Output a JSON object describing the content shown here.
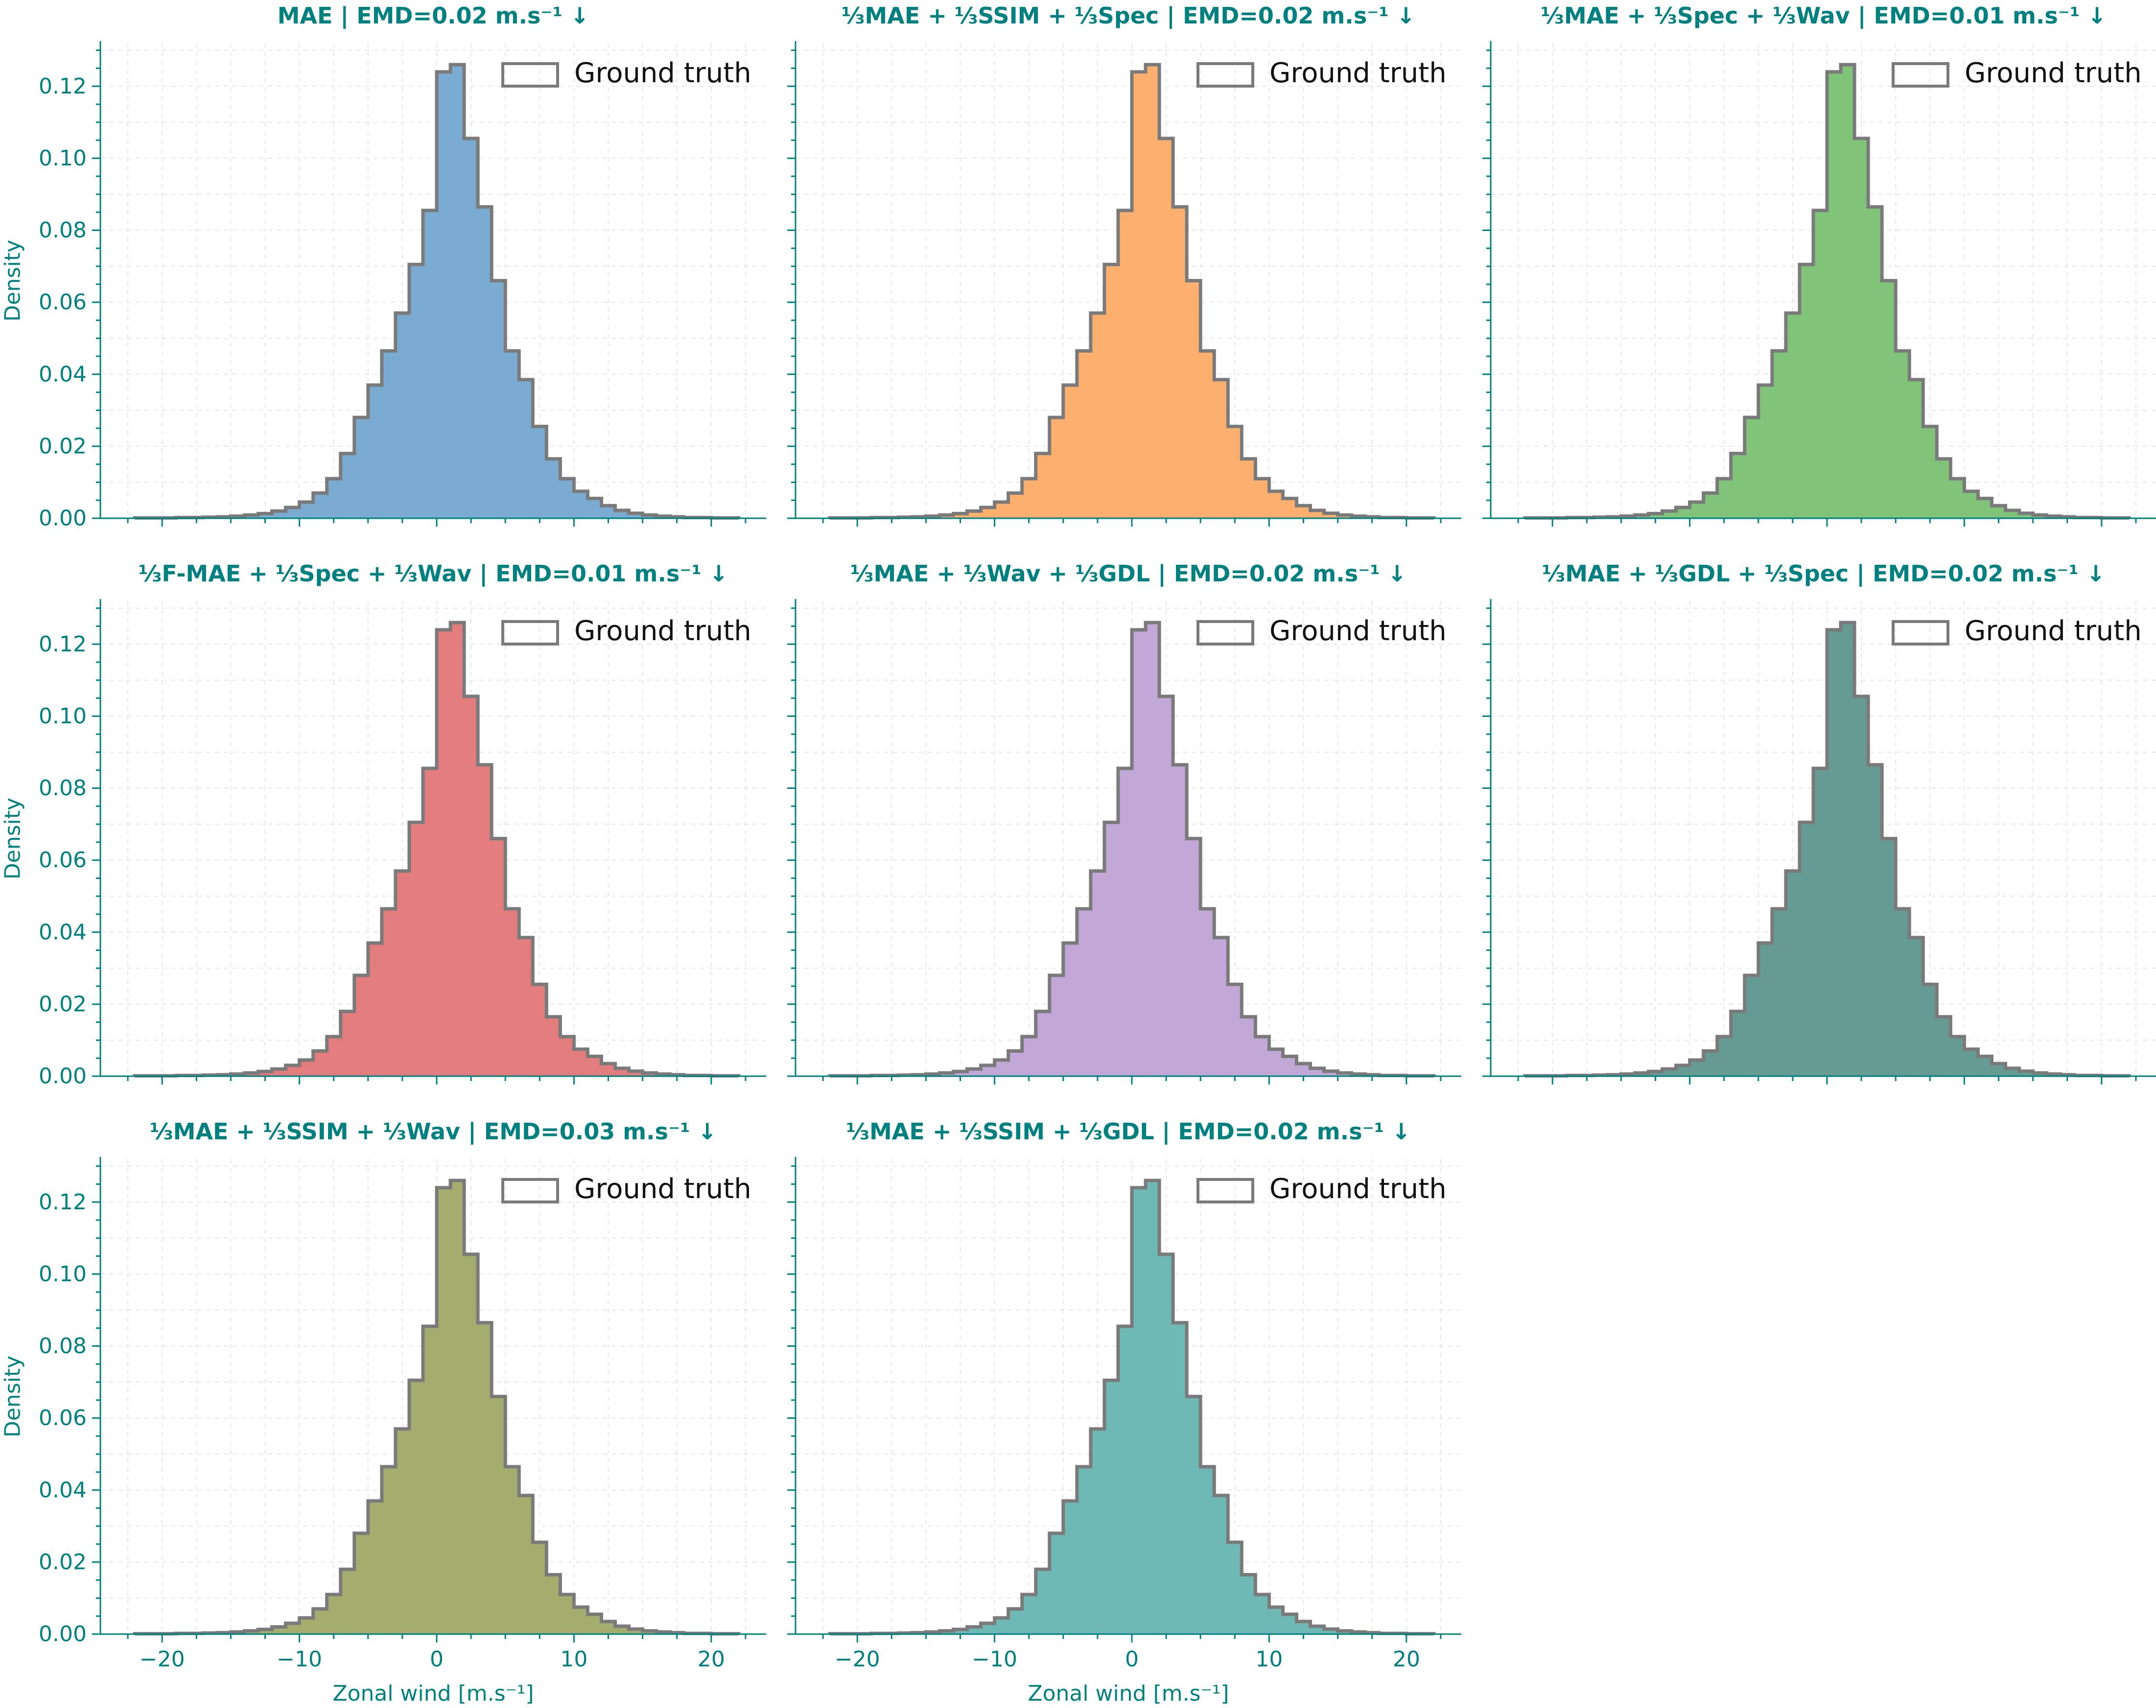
{
  "figure": {
    "colors": {
      "text": "#00807f",
      "outline": "#7a7a7a",
      "grid": "#e6e6e6"
    }
  },
  "chart_data": [
    {
      "type": "histogram",
      "title": "MAE | EMD=0.02 m.s⁻¹ ↓",
      "fill": "#7aacd1",
      "legend": "Ground truth",
      "legend_position": "top-right",
      "ylabel": "Density",
      "xlabel": "",
      "xlim": [
        -24.5,
        24
      ],
      "ylim": [
        0,
        0.132
      ],
      "xticks": [],
      "yticks": [
        "0.00",
        "0.02",
        "0.04",
        "0.06",
        "0.08",
        "0.10",
        "0.12"
      ],
      "grid": true,
      "bins_left": [
        -22,
        -21,
        -20,
        -19,
        -18,
        -17,
        -16,
        -15,
        -14,
        -13,
        -12,
        -11,
        -10,
        -9,
        -8,
        -7,
        -6,
        -5,
        -4,
        -3,
        -2,
        -1,
        0,
        1,
        2,
        3,
        4,
        5,
        6,
        7,
        8,
        9,
        10,
        11,
        12,
        13,
        14,
        15,
        16,
        17,
        18,
        19,
        20,
        21
      ],
      "density": [
        0.0001,
        0.0001,
        0.0001,
        0.0002,
        0.0002,
        0.0003,
        0.0004,
        0.0006,
        0.0009,
        0.0013,
        0.002,
        0.003,
        0.0045,
        0.007,
        0.011,
        0.018,
        0.028,
        0.037,
        0.0465,
        0.057,
        0.0705,
        0.0855,
        0.124,
        0.126,
        0.1055,
        0.0865,
        0.066,
        0.0465,
        0.0385,
        0.0255,
        0.0165,
        0.011,
        0.0075,
        0.0055,
        0.0035,
        0.0022,
        0.0014,
        0.0009,
        0.0006,
        0.0004,
        0.0002,
        0.0002,
        0.0001,
        0.0001
      ]
    },
    {
      "type": "histogram",
      "title": "⅓MAE + ⅓SSIM + ⅓Spec | EMD=0.02 m.s⁻¹ ↓",
      "fill": "#fdb06e",
      "legend": "Ground truth",
      "legend_position": "top-right",
      "ylabel": "",
      "xlabel": "",
      "xlim": [
        -24.5,
        24
      ],
      "ylim": [
        0,
        0.132
      ],
      "xticks": [],
      "yticks": [],
      "grid": true,
      "bins_left": [
        -22,
        -21,
        -20,
        -19,
        -18,
        -17,
        -16,
        -15,
        -14,
        -13,
        -12,
        -11,
        -10,
        -9,
        -8,
        -7,
        -6,
        -5,
        -4,
        -3,
        -2,
        -1,
        0,
        1,
        2,
        3,
        4,
        5,
        6,
        7,
        8,
        9,
        10,
        11,
        12,
        13,
        14,
        15,
        16,
        17,
        18,
        19,
        20,
        21
      ],
      "density": [
        0.0001,
        0.0001,
        0.0001,
        0.0002,
        0.0002,
        0.0003,
        0.0004,
        0.0006,
        0.0009,
        0.0013,
        0.002,
        0.003,
        0.0045,
        0.007,
        0.011,
        0.018,
        0.028,
        0.037,
        0.0465,
        0.057,
        0.0705,
        0.0855,
        0.124,
        0.126,
        0.1055,
        0.0865,
        0.066,
        0.0465,
        0.0385,
        0.0255,
        0.0165,
        0.011,
        0.0075,
        0.0055,
        0.0035,
        0.0022,
        0.0014,
        0.0009,
        0.0006,
        0.0004,
        0.0002,
        0.0002,
        0.0001,
        0.0001
      ]
    },
    {
      "type": "histogram",
      "title": "⅓MAE + ⅓Spec + ⅓Wav | EMD=0.01 m.s⁻¹ ↓",
      "fill": "#80c47a",
      "legend": "Ground truth",
      "legend_position": "top-right",
      "ylabel": "",
      "xlabel": "",
      "xlim": [
        -24.5,
        24
      ],
      "ylim": [
        0,
        0.132
      ],
      "xticks": [],
      "yticks": [],
      "grid": true,
      "bins_left": [
        -22,
        -21,
        -20,
        -19,
        -18,
        -17,
        -16,
        -15,
        -14,
        -13,
        -12,
        -11,
        -10,
        -9,
        -8,
        -7,
        -6,
        -5,
        -4,
        -3,
        -2,
        -1,
        0,
        1,
        2,
        3,
        4,
        5,
        6,
        7,
        8,
        9,
        10,
        11,
        12,
        13,
        14,
        15,
        16,
        17,
        18,
        19,
        20,
        21
      ],
      "density": [
        0.0001,
        0.0001,
        0.0001,
        0.0002,
        0.0002,
        0.0003,
        0.0004,
        0.0006,
        0.0009,
        0.0013,
        0.002,
        0.003,
        0.0045,
        0.007,
        0.011,
        0.018,
        0.028,
        0.037,
        0.0465,
        0.057,
        0.0705,
        0.0855,
        0.124,
        0.126,
        0.1055,
        0.0865,
        0.066,
        0.0465,
        0.0385,
        0.0255,
        0.0165,
        0.011,
        0.0075,
        0.0055,
        0.0035,
        0.0022,
        0.0014,
        0.0009,
        0.0006,
        0.0004,
        0.0002,
        0.0002,
        0.0001,
        0.0001
      ]
    },
    {
      "type": "histogram",
      "title": "⅓F-MAE + ⅓Spec + ⅓Wav | EMD=0.01 m.s⁻¹ ↓",
      "fill": "#e37d7d",
      "legend": "Ground truth",
      "legend_position": "top-right",
      "ylabel": "Density",
      "xlabel": "",
      "xlim": [
        -24.5,
        24
      ],
      "ylim": [
        0,
        0.132
      ],
      "xticks": [],
      "yticks": [
        "0.00",
        "0.02",
        "0.04",
        "0.06",
        "0.08",
        "0.10",
        "0.12"
      ],
      "grid": true,
      "bins_left": [
        -22,
        -21,
        -20,
        -19,
        -18,
        -17,
        -16,
        -15,
        -14,
        -13,
        -12,
        -11,
        -10,
        -9,
        -8,
        -7,
        -6,
        -5,
        -4,
        -3,
        -2,
        -1,
        0,
        1,
        2,
        3,
        4,
        5,
        6,
        7,
        8,
        9,
        10,
        11,
        12,
        13,
        14,
        15,
        16,
        17,
        18,
        19,
        20,
        21
      ],
      "density": [
        0.0001,
        0.0001,
        0.0001,
        0.0002,
        0.0002,
        0.0003,
        0.0004,
        0.0006,
        0.0009,
        0.0013,
        0.002,
        0.003,
        0.0045,
        0.007,
        0.011,
        0.018,
        0.028,
        0.037,
        0.0465,
        0.057,
        0.0705,
        0.0855,
        0.124,
        0.126,
        0.1055,
        0.0865,
        0.066,
        0.0465,
        0.0385,
        0.0255,
        0.0165,
        0.011,
        0.0075,
        0.0055,
        0.0035,
        0.0022,
        0.0014,
        0.0009,
        0.0006,
        0.0004,
        0.0002,
        0.0002,
        0.0001,
        0.0001
      ]
    },
    {
      "type": "histogram",
      "title": "⅓MAE + ⅓Wav + ⅓GDL | EMD=0.02 m.s⁻¹ ↓",
      "fill": "#c0a7d6",
      "legend": "Ground truth",
      "legend_position": "top-right",
      "ylabel": "",
      "xlabel": "",
      "xlim": [
        -24.5,
        24
      ],
      "ylim": [
        0,
        0.132
      ],
      "xticks": [],
      "yticks": [],
      "grid": true,
      "bins_left": [
        -22,
        -21,
        -20,
        -19,
        -18,
        -17,
        -16,
        -15,
        -14,
        -13,
        -12,
        -11,
        -10,
        -9,
        -8,
        -7,
        -6,
        -5,
        -4,
        -3,
        -2,
        -1,
        0,
        1,
        2,
        3,
        4,
        5,
        6,
        7,
        8,
        9,
        10,
        11,
        12,
        13,
        14,
        15,
        16,
        17,
        18,
        19,
        20,
        21
      ],
      "density": [
        0.0001,
        0.0001,
        0.0001,
        0.0002,
        0.0002,
        0.0003,
        0.0004,
        0.0006,
        0.0009,
        0.0013,
        0.002,
        0.003,
        0.0045,
        0.007,
        0.011,
        0.018,
        0.028,
        0.037,
        0.0465,
        0.057,
        0.0705,
        0.0855,
        0.124,
        0.126,
        0.1055,
        0.0865,
        0.066,
        0.0465,
        0.0385,
        0.0255,
        0.0165,
        0.011,
        0.0075,
        0.0055,
        0.0035,
        0.0022,
        0.0014,
        0.0009,
        0.0006,
        0.0004,
        0.0002,
        0.0002,
        0.0001,
        0.0001
      ]
    },
    {
      "type": "histogram",
      "title": "⅓MAE + ⅓GDL + ⅓Spec | EMD=0.02 m.s⁻¹ ↓",
      "fill": "#669b93",
      "legend": "Ground truth",
      "legend_position": "top-right",
      "ylabel": "",
      "xlabel": "",
      "xlim": [
        -24.5,
        24
      ],
      "ylim": [
        0,
        0.132
      ],
      "xticks": [],
      "yticks": [],
      "grid": true,
      "bins_left": [
        -22,
        -21,
        -20,
        -19,
        -18,
        -17,
        -16,
        -15,
        -14,
        -13,
        -12,
        -11,
        -10,
        -9,
        -8,
        -7,
        -6,
        -5,
        -4,
        -3,
        -2,
        -1,
        0,
        1,
        2,
        3,
        4,
        5,
        6,
        7,
        8,
        9,
        10,
        11,
        12,
        13,
        14,
        15,
        16,
        17,
        18,
        19,
        20,
        21
      ],
      "density": [
        0.0001,
        0.0001,
        0.0001,
        0.0002,
        0.0002,
        0.0003,
        0.0004,
        0.0006,
        0.0009,
        0.0013,
        0.002,
        0.003,
        0.0045,
        0.007,
        0.011,
        0.018,
        0.028,
        0.037,
        0.0465,
        0.057,
        0.0705,
        0.0855,
        0.124,
        0.126,
        0.1055,
        0.0865,
        0.066,
        0.0465,
        0.0385,
        0.0255,
        0.0165,
        0.011,
        0.0075,
        0.0055,
        0.0035,
        0.0022,
        0.0014,
        0.0009,
        0.0006,
        0.0004,
        0.0002,
        0.0002,
        0.0001,
        0.0001
      ]
    },
    {
      "type": "histogram",
      "title": "⅓MAE + ⅓SSIM + ⅓Wav | EMD=0.03 m.s⁻¹ ↓",
      "fill": "#a4ad6e",
      "legend": "Ground truth",
      "legend_position": "top-right",
      "ylabel": "Density",
      "xlabel": "Zonal wind [m.s⁻¹]",
      "xlim": [
        -24.5,
        24
      ],
      "ylim": [
        0,
        0.132
      ],
      "xticks": [
        -20,
        -10,
        0,
        10,
        20
      ],
      "xtick_labels": [
        "−20",
        "−10",
        "0",
        "10",
        "20"
      ],
      "yticks": [
        "0.00",
        "0.02",
        "0.04",
        "0.06",
        "0.08",
        "0.10",
        "0.12"
      ],
      "grid": true,
      "bins_left": [
        -22,
        -21,
        -20,
        -19,
        -18,
        -17,
        -16,
        -15,
        -14,
        -13,
        -12,
        -11,
        -10,
        -9,
        -8,
        -7,
        -6,
        -5,
        -4,
        -3,
        -2,
        -1,
        0,
        1,
        2,
        3,
        4,
        5,
        6,
        7,
        8,
        9,
        10,
        11,
        12,
        13,
        14,
        15,
        16,
        17,
        18,
        19,
        20,
        21
      ],
      "density": [
        0.0001,
        0.0001,
        0.0001,
        0.0002,
        0.0002,
        0.0003,
        0.0004,
        0.0006,
        0.0009,
        0.0013,
        0.002,
        0.003,
        0.0045,
        0.007,
        0.011,
        0.018,
        0.028,
        0.037,
        0.0465,
        0.057,
        0.0705,
        0.0855,
        0.124,
        0.126,
        0.1055,
        0.0865,
        0.066,
        0.0465,
        0.0385,
        0.0255,
        0.0165,
        0.011,
        0.0075,
        0.0055,
        0.0035,
        0.0022,
        0.0014,
        0.0009,
        0.0006,
        0.0004,
        0.0002,
        0.0002,
        0.0001,
        0.0001
      ]
    },
    {
      "type": "histogram",
      "title": "⅓MAE + ⅓SSIM + ⅓GDL | EMD=0.02 m.s⁻¹ ↓",
      "fill": "#6eb8b5",
      "legend": "Ground truth",
      "legend_position": "top-right",
      "ylabel": "",
      "xlabel": "Zonal wind [m.s⁻¹]",
      "xlim": [
        -24.5,
        24
      ],
      "ylim": [
        0,
        0.132
      ],
      "xticks": [
        -20,
        -10,
        0,
        10,
        20
      ],
      "xtick_labels": [
        "−20",
        "−10",
        "0",
        "10",
        "20"
      ],
      "yticks": [],
      "grid": true,
      "bins_left": [
        -22,
        -21,
        -20,
        -19,
        -18,
        -17,
        -16,
        -15,
        -14,
        -13,
        -12,
        -11,
        -10,
        -9,
        -8,
        -7,
        -6,
        -5,
        -4,
        -3,
        -2,
        -1,
        0,
        1,
        2,
        3,
        4,
        5,
        6,
        7,
        8,
        9,
        10,
        11,
        12,
        13,
        14,
        15,
        16,
        17,
        18,
        19,
        20,
        21
      ],
      "density": [
        0.0001,
        0.0001,
        0.0001,
        0.0002,
        0.0002,
        0.0003,
        0.0004,
        0.0006,
        0.0009,
        0.0013,
        0.002,
        0.003,
        0.0045,
        0.007,
        0.011,
        0.018,
        0.028,
        0.037,
        0.0465,
        0.057,
        0.0705,
        0.0855,
        0.124,
        0.126,
        0.1055,
        0.0865,
        0.066,
        0.0465,
        0.0385,
        0.0255,
        0.0165,
        0.011,
        0.0075,
        0.0055,
        0.0035,
        0.0022,
        0.0014,
        0.0009,
        0.0006,
        0.0004,
        0.0002,
        0.0002,
        0.0001,
        0.0001
      ]
    }
  ]
}
